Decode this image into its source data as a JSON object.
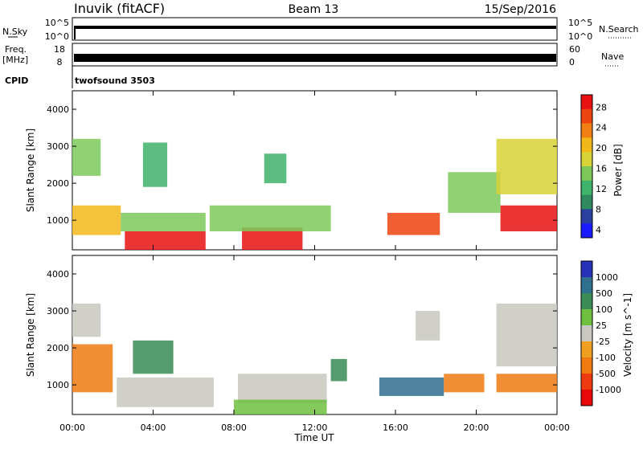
{
  "header": {
    "station": "Inuvik (fitACF)",
    "beam": "Beam 13",
    "date": "15/Sep/2016"
  },
  "strips": {
    "nsky_label": "N.Sky",
    "nsky_ticks": [
      "10^5",
      "10^0"
    ],
    "nsearch_label": "N.Search",
    "nsearch_ticks": [
      "10^5",
      "10^0"
    ],
    "freq_label_1": "Freq.",
    "freq_label_2": "[MHz]",
    "freq_ticks": [
      "18",
      "8"
    ],
    "nave_label": "Nave",
    "nave_ticks": [
      "60",
      "0"
    ],
    "cpid_label": "CPID",
    "cpid_value": "twofsound 3503"
  },
  "colors": {
    "power_scale": [
      "#1a1aff",
      "#2a3f9e",
      "#2f8a5f",
      "#3fb26b",
      "#7cc95a",
      "#d7d235",
      "#f2b81a",
      "#f27f12",
      "#ee4410",
      "#e81010"
    ],
    "velocity_scale": [
      "#2630b8",
      "#2f6f8f",
      "#3a8b56",
      "#6fbf3f",
      "#c8c8c0",
      "#f0a020",
      "#f07a10",
      "#ee3a10",
      "#e80808"
    ]
  },
  "chart_data": [
    {
      "type": "heatmap",
      "name": "power",
      "ylabel": "Slant Range [km]",
      "yticks": [
        "4000",
        "3000",
        "2000",
        "1000"
      ],
      "ylim": [
        200,
        4500
      ],
      "xlim_hours": [
        0,
        24
      ],
      "colorbar_label": "Power [dB]",
      "colorbar_ticks": [
        "28",
        "24",
        "20",
        "16",
        "12",
        "8",
        "4"
      ],
      "colorbar_range": [
        0,
        30
      ],
      "regions": [
        {
          "t0": 2.6,
          "t1": 6.6,
          "r0": 200,
          "r1": 700,
          "value": 29
        },
        {
          "t0": 8.4,
          "t1": 11.4,
          "r0": 200,
          "r1": 800,
          "value": 29
        },
        {
          "t0": 0.0,
          "t1": 2.4,
          "r0": 600,
          "r1": 1400,
          "value": 20
        },
        {
          "t0": 0.0,
          "t1": 1.4,
          "r0": 2200,
          "r1": 3200,
          "value": 14
        },
        {
          "t0": 2.4,
          "t1": 6.6,
          "r0": 700,
          "r1": 1200,
          "value": 14
        },
        {
          "t0": 6.8,
          "t1": 12.8,
          "r0": 700,
          "r1": 1400,
          "value": 12
        },
        {
          "t0": 3.5,
          "t1": 4.7,
          "r0": 1900,
          "r1": 3100,
          "value": 10
        },
        {
          "t0": 9.5,
          "t1": 10.6,
          "r0": 2000,
          "r1": 2800,
          "value": 10
        },
        {
          "t0": 15.6,
          "t1": 18.2,
          "r0": 600,
          "r1": 1200,
          "value": 24
        },
        {
          "t0": 18.6,
          "t1": 21.2,
          "r0": 1200,
          "r1": 2300,
          "value": 12
        },
        {
          "t0": 21.2,
          "t1": 24.0,
          "r0": 700,
          "r1": 1400,
          "value": 28
        },
        {
          "t0": 21.0,
          "t1": 24.0,
          "r0": 1700,
          "r1": 3200,
          "value": 16
        }
      ]
    },
    {
      "type": "heatmap",
      "name": "velocity",
      "ylabel": "Slant Range [km]",
      "yticks": [
        "4000",
        "3000",
        "2000",
        "1000"
      ],
      "ylim": [
        200,
        4500
      ],
      "xticks": [
        "00:00",
        "04:00",
        "08:00",
        "12:00",
        "16:00",
        "20:00",
        "00:00"
      ],
      "xlabel": "Time UT",
      "xlim_hours": [
        0,
        24
      ],
      "colorbar_label": "Velocity [m s^-1]",
      "colorbar_ticks": [
        "1000",
        "500",
        "100",
        "25",
        "-25",
        "-100",
        "-500",
        "-1000"
      ],
      "regions": [
        {
          "t0": 0.0,
          "t1": 2.0,
          "r0": 800,
          "r1": 2100,
          "value": -300
        },
        {
          "t0": 0.0,
          "t1": 1.4,
          "r0": 2300,
          "r1": 3200,
          "value": 0
        },
        {
          "t0": 2.2,
          "t1": 7.0,
          "r0": 400,
          "r1": 1200,
          "value": 0
        },
        {
          "t0": 3.0,
          "t1": 5.0,
          "r0": 1300,
          "r1": 2200,
          "value": 200
        },
        {
          "t0": 8.2,
          "t1": 12.6,
          "r0": 500,
          "r1": 1300,
          "value": 0
        },
        {
          "t0": 8.0,
          "t1": 12.6,
          "r0": 200,
          "r1": 600,
          "value": 60
        },
        {
          "t0": 15.2,
          "t1": 18.4,
          "r0": 700,
          "r1": 1200,
          "value": 700
        },
        {
          "t0": 18.4,
          "t1": 20.4,
          "r0": 800,
          "r1": 1300,
          "value": -200
        },
        {
          "t0": 21.0,
          "t1": 24.0,
          "r0": 800,
          "r1": 1300,
          "value": -400
        },
        {
          "t0": 21.0,
          "t1": 24.0,
          "r0": 1500,
          "r1": 3200,
          "value": 0
        },
        {
          "t0": 17.0,
          "t1": 18.2,
          "r0": 2200,
          "r1": 3000,
          "value": 0
        },
        {
          "t0": 12.8,
          "t1": 13.6,
          "r0": 1100,
          "r1": 1700,
          "value": 300
        }
      ]
    }
  ]
}
